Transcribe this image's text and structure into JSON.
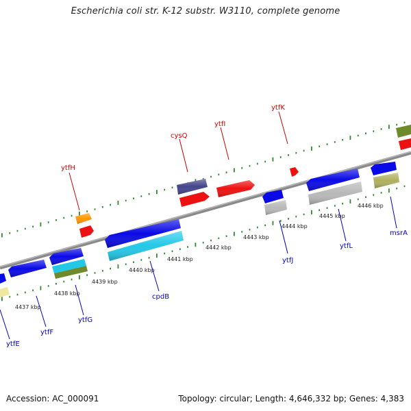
{
  "title": "Escherichia coli str. K-12 substr. W3110, complete genome",
  "footer": {
    "accession": "Accession: AC_000091",
    "summary": "Topology: circular; Length: 4,646,332 bp; Genes: 4,383"
  },
  "colors": {
    "backbone": "#8a8a8a",
    "tick_dots": "#2f8a2f",
    "forward_label": "#d00000",
    "reverse_label": "#0000c8",
    "gene_blue": "#0a0ae6",
    "gene_red": "#ee1111",
    "gene_navy": "#45458a",
    "gene_orange": "#ff9900",
    "gene_cyan": "#22c8e8",
    "gene_olive": "#6e8a2a",
    "gene_gray": "#b8b8b8",
    "gene_khaki": "#b0b060",
    "gene_pale": "#f0e8a0"
  },
  "kbp_ticks": [
    "4437 kbp",
    "4438 kbp",
    "4439 kbp",
    "4440 kbp",
    "4441 kbp",
    "4442 kbp",
    "4443 kbp",
    "4444 kbp",
    "4445 kbp",
    "4446 kbp"
  ],
  "forward_labels": [
    "ytfH",
    "cysQ",
    "ytfI",
    "ytfK"
  ],
  "reverse_labels": [
    "ytfE",
    "ytfF",
    "ytfG",
    "cpdB",
    "ytfJ",
    "ytfL",
    "msrA"
  ]
}
